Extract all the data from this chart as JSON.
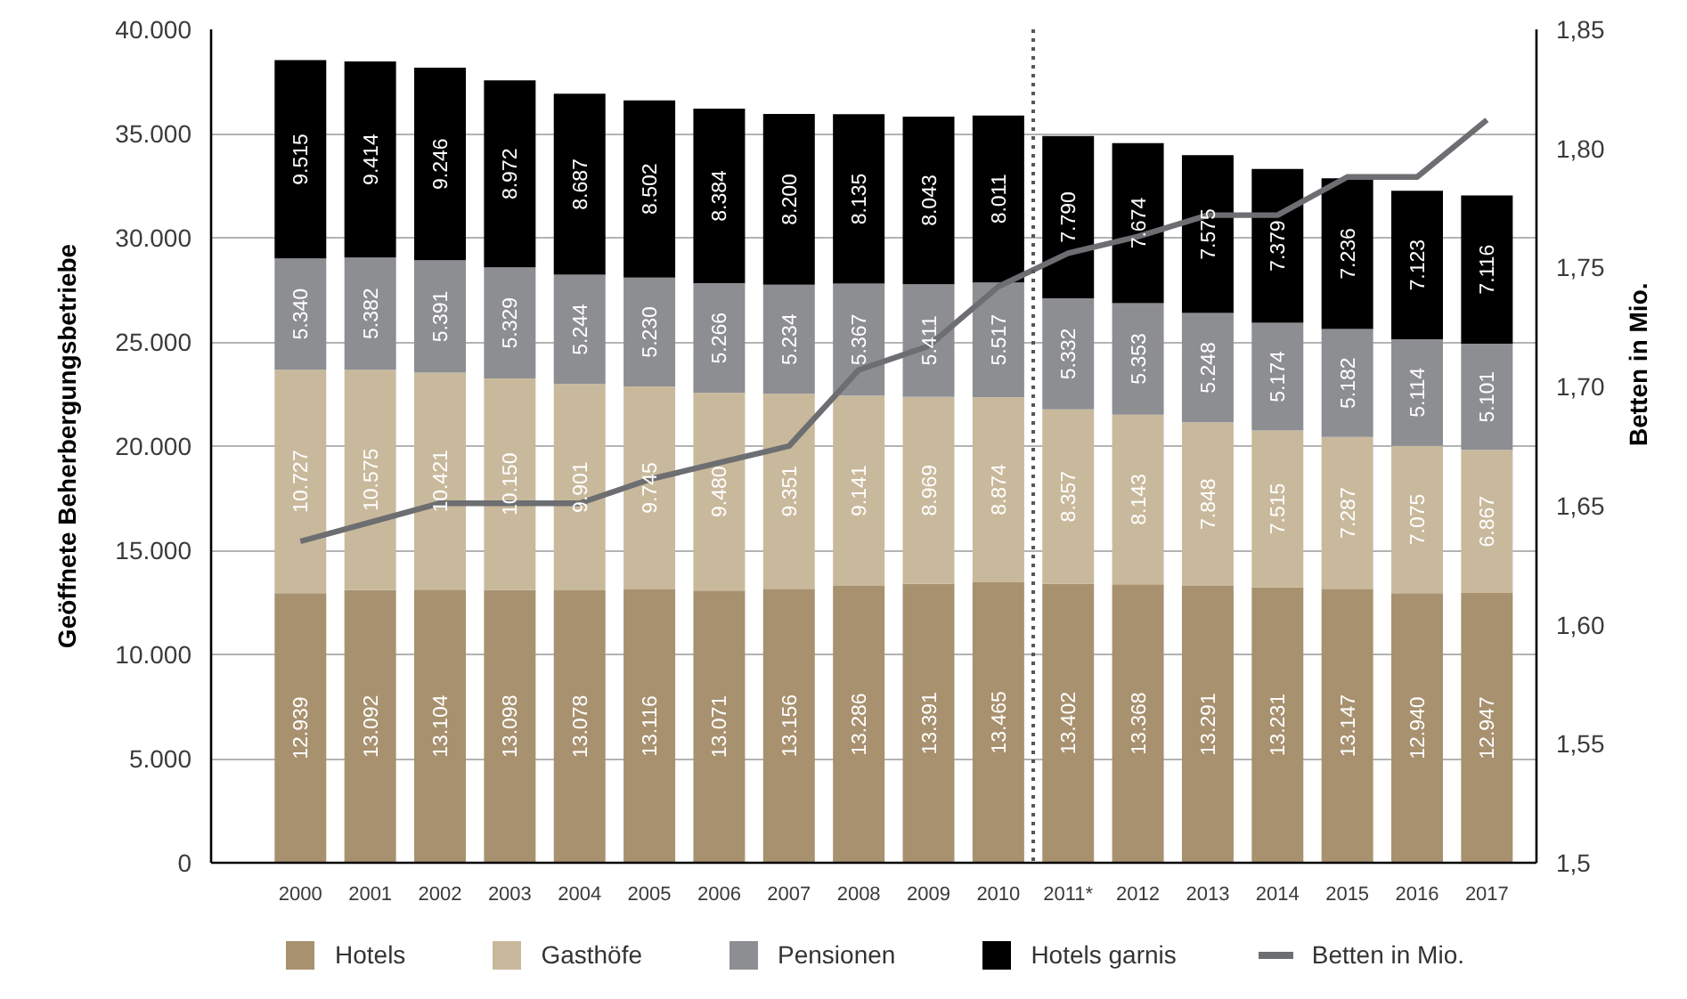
{
  "chart_data": {
    "type": "bar",
    "stacked": true,
    "categories": [
      "2000",
      "2001",
      "2002",
      "2003",
      "2004",
      "2005",
      "2006",
      "2007",
      "2008",
      "2009",
      "2010",
      "2011*",
      "2012",
      "2013",
      "2014",
      "2015",
      "2016",
      "2017"
    ],
    "ylabel": "Geöffnete Beherbergungsbetriebe",
    "y2label": "Betten in Mio.",
    "ylim": [
      0,
      40000
    ],
    "yticks": [
      0,
      {
        "value": 5000,
        "label": "5.000"
      },
      {
        "value": 10000,
        "label": "10.000"
      },
      {
        "value": 15000,
        "label": "15.000"
      },
      {
        "value": 20000,
        "label": "20.000"
      },
      {
        "value": 25000,
        "label": "25.000"
      },
      {
        "value": 30000,
        "label": "30.000"
      },
      {
        "value": 35000,
        "label": "35.000"
      },
      {
        "value": 40000,
        "label": "40.000"
      }
    ],
    "y2lim": [
      1.5,
      1.85
    ],
    "y2ticks": [
      {
        "value": 1.5,
        "label": "1,5"
      },
      {
        "value": 1.55,
        "label": "1,55"
      },
      {
        "value": 1.6,
        "label": "1,60"
      },
      {
        "value": 1.65,
        "label": "1,65"
      },
      {
        "value": 1.7,
        "label": "1,70"
      },
      {
        "value": 1.75,
        "label": "1,75"
      },
      {
        "value": 1.8,
        "label": "1,80"
      },
      {
        "value": 1.85,
        "label": "1,85"
      }
    ],
    "grid": "y",
    "legend": "bottom",
    "series": [
      {
        "name": "Hotels",
        "color": "#a8916f",
        "values": [
          12939,
          13092,
          13104,
          13098,
          13078,
          13116,
          13071,
          13156,
          13286,
          13391,
          13465,
          13402,
          13368,
          13291,
          13231,
          13147,
          12940,
          12947
        ],
        "value_labels": [
          "12.939",
          "13.092",
          "13.104",
          "13.098",
          "13.078",
          "13.116",
          "13.071",
          "13.156",
          "13.286",
          "13.391",
          "13.465",
          "13.402",
          "13.368",
          "13.291",
          "13.231",
          "13.147",
          "12.940",
          "12.947"
        ]
      },
      {
        "name": "Gasthöfe",
        "color": "#c9b99c",
        "values": [
          10727,
          10575,
          10421,
          10150,
          9901,
          9745,
          9480,
          9351,
          9141,
          8969,
          8874,
          8357,
          8143,
          7848,
          7515,
          7287,
          7075,
          6867
        ],
        "value_labels": [
          "10.727",
          "10.575",
          "10.421",
          "10.150",
          "9.901",
          "9.745",
          "9.480",
          "9.351",
          "9.141",
          "8.969",
          "8.874",
          "8.357",
          "8.143",
          "7.848",
          "7.515",
          "7.287",
          "7.075",
          "6.867"
        ]
      },
      {
        "name": "Pensionen",
        "color": "#8d8e92",
        "values": [
          5340,
          5382,
          5391,
          5329,
          5244,
          5230,
          5266,
          5234,
          5367,
          5411,
          5517,
          5332,
          5353,
          5248,
          5174,
          5182,
          5114,
          5101
        ],
        "value_labels": [
          "5.340",
          "5.382",
          "5.391",
          "5.329",
          "5.244",
          "5.230",
          "5.266",
          "5.234",
          "5.367",
          "5.411",
          "5.517",
          "5.332",
          "5.353",
          "5.248",
          "5.174",
          "5.182",
          "5.114",
          "5.101"
        ]
      },
      {
        "name": "Hotels garnis",
        "color": "#000000",
        "values": [
          9515,
          9414,
          9246,
          8972,
          8687,
          8502,
          8384,
          8200,
          8135,
          8043,
          8011,
          7790,
          7674,
          7575,
          7379,
          7236,
          7123,
          7116
        ],
        "value_labels": [
          "9.515",
          "9.414",
          "9.246",
          "8.972",
          "8.687",
          "8.502",
          "8.384",
          "8.200",
          "8.135",
          "8.043",
          "8.011",
          "7.790",
          "7.674",
          "7.575",
          "7.379",
          "7.236",
          "7.123",
          "7.116"
        ]
      },
      {
        "name": "Betten in Mio.",
        "type": "line",
        "axis": "y2",
        "color": "#6d6e71",
        "values": [
          1.635,
          1.643,
          1.651,
          1.651,
          1.651,
          1.661,
          1.668,
          1.675,
          1.707,
          1.717,
          1.742,
          1.756,
          1.763,
          1.772,
          1.772,
          1.788,
          1.788,
          1.812
        ]
      }
    ],
    "ref_lines": [
      {
        "axis": "x",
        "value": "2011*",
        "color": "#555555",
        "line_style": "dotted"
      }
    ]
  }
}
